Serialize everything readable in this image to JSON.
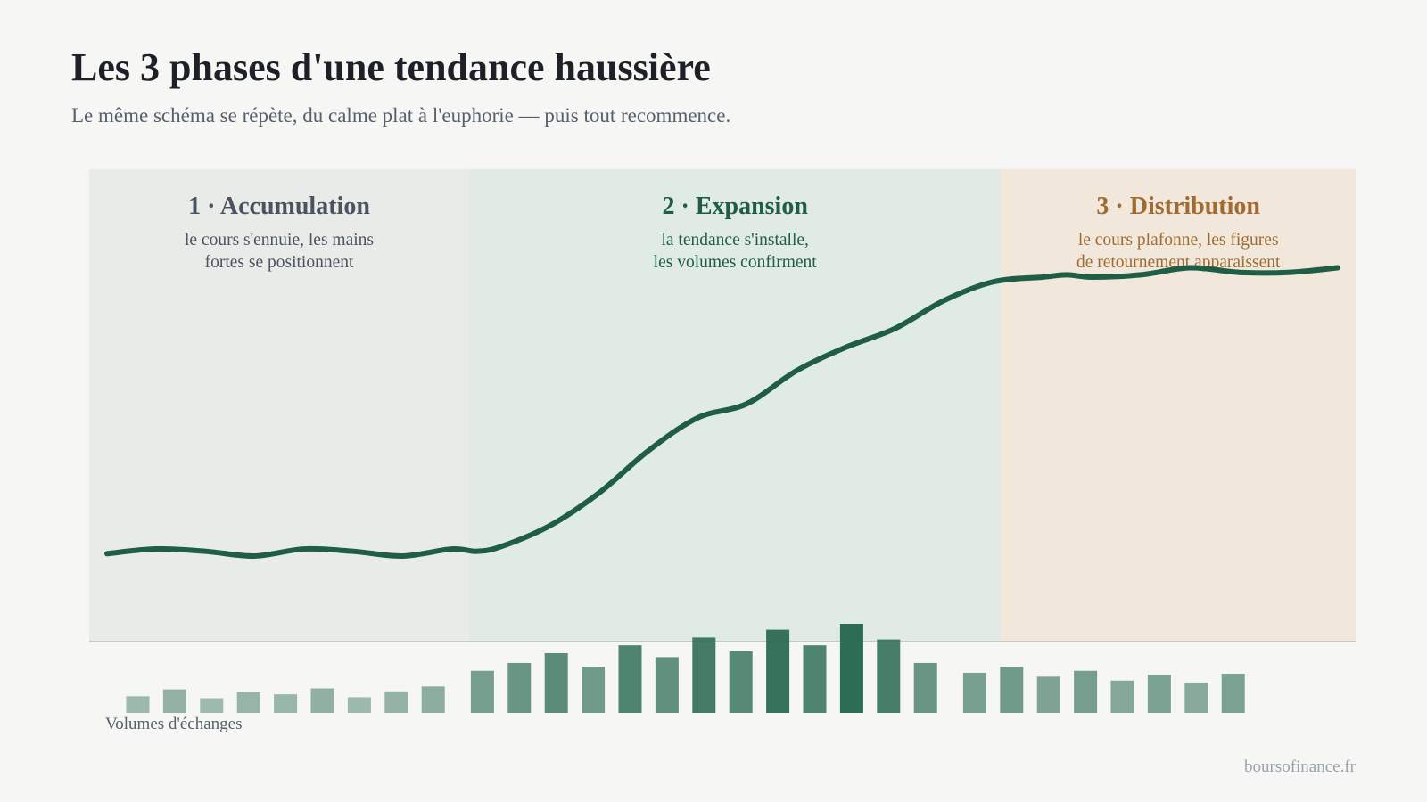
{
  "header": {
    "title": "Les 3 phases d'une tendance haussière",
    "subtitle": "Le même schéma se répète, du calme plat à l'euphorie — puis tout recommence."
  },
  "phases": [
    {
      "title": "1 · Accumulation",
      "desc_line1": "le cours s'ennuie, les mains",
      "desc_line2": "fortes se positionnent",
      "bg": "#e9ebe8",
      "color": "#4a5461"
    },
    {
      "title": "2 · Expansion",
      "desc_line1": "la tendance s'installe,",
      "desc_line2": "les volumes confirment",
      "bg": "#e0ebe3",
      "color": "#1f5e45"
    },
    {
      "title": "3 · Distribution",
      "desc_line1": "le cours plafonne, les figures",
      "desc_line2": "de retournement apparaissent",
      "bg": "#f1e7da",
      "color": "#a06b32"
    }
  ],
  "volume_label": "Volumes d'échanges",
  "source": "boursofinance.fr",
  "colors": {
    "line": "#1f5e45",
    "accent_green": "#2a6a52",
    "axis": "#b9c0c0"
  },
  "chart_data": {
    "type": "line",
    "title": "Les 3 phases d'une tendance haussière",
    "price": {
      "x": [
        0,
        4,
        8,
        12,
        16,
        20,
        24,
        28,
        30,
        32,
        36,
        40,
        44,
        48,
        52,
        56,
        60,
        64,
        68,
        72,
        76,
        78,
        80,
        84,
        88,
        92,
        96,
        100
      ],
      "y": [
        18,
        19,
        18.5,
        17.5,
        19,
        18.5,
        17.5,
        19,
        18.5,
        19.5,
        24,
        31,
        40,
        47,
        50,
        57,
        62,
        66,
        72,
        76,
        77,
        77.5,
        77,
        77.5,
        79,
        78,
        78,
        79
      ]
    },
    "phase_bounds": [
      0,
      30,
      72,
      100
    ],
    "ylim": [
      0,
      100
    ],
    "volumes": {
      "x": [
        2.5,
        5.5,
        8.5,
        11.5,
        14.5,
        17.5,
        20.5,
        23.5,
        26.5,
        30.5,
        33.5,
        36.5,
        39.5,
        42.5,
        45.5,
        48.5,
        51.5,
        54.5,
        57.5,
        60.5,
        63.5,
        66.5,
        70.5,
        73.5,
        76.5,
        79.5,
        82.5,
        85.5,
        88.5,
        91.5
      ],
      "values": [
        17,
        24,
        15,
        21,
        19,
        25,
        16,
        22,
        27,
        43,
        51,
        61,
        47,
        69,
        57,
        77,
        63,
        85,
        69,
        91,
        75,
        51,
        41,
        47,
        37,
        43,
        33,
        39,
        31,
        40
      ],
      "phase": [
        0,
        0,
        0,
        0,
        0,
        0,
        0,
        0,
        0,
        1,
        1,
        1,
        1,
        1,
        1,
        1,
        1,
        1,
        1,
        1,
        1,
        2,
        2,
        2,
        2,
        2,
        2,
        2,
        2,
        2
      ]
    }
  }
}
